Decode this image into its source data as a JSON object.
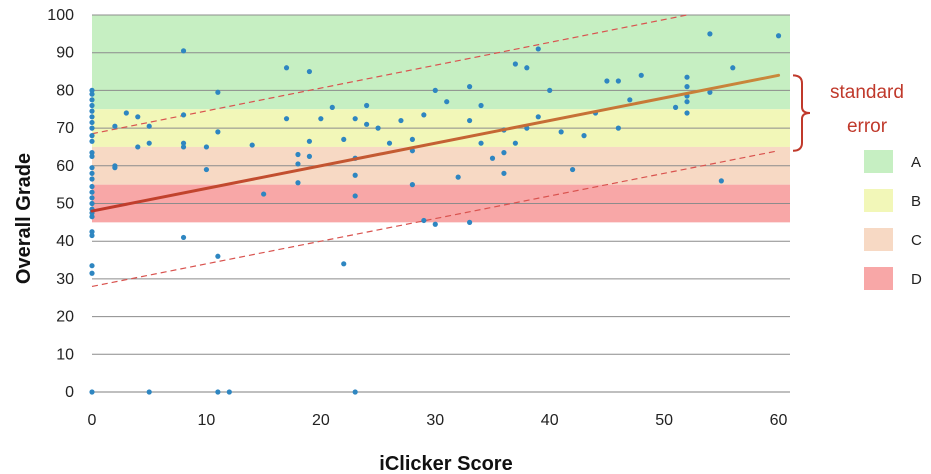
{
  "chart_data": {
    "type": "scatter",
    "xlabel": "iClicker Score",
    "ylabel": "Overall Grade",
    "xlim": [
      0,
      61
    ],
    "ylim": [
      0,
      100
    ],
    "xticks": [
      "0",
      "10",
      "20",
      "30",
      "40",
      "50",
      "60"
    ],
    "yticks": [
      "0",
      "10",
      "20",
      "30",
      "40",
      "50",
      "60",
      "70",
      "80",
      "90",
      "100"
    ],
    "grid": "horizontal",
    "grade_bands": [
      {
        "label": "A",
        "from": 75,
        "to": 100,
        "color": "#c6efc2"
      },
      {
        "label": "B",
        "from": 65,
        "to": 75,
        "color": "#f2f7b8"
      },
      {
        "label": "C",
        "from": 55,
        "to": 65,
        "color": "#f7d9c4"
      },
      {
        "label": "D",
        "from": 45,
        "to": 55,
        "color": "#f8a7a7"
      }
    ],
    "trend_line": {
      "x": [
        0,
        60
      ],
      "y": [
        48,
        84
      ],
      "color": "#c0392b"
    },
    "band_lines": [
      {
        "x": [
          0,
          52
        ],
        "y": [
          68.5,
          100
        ]
      },
      {
        "x": [
          0,
          60
        ],
        "y": [
          28,
          64
        ]
      }
    ],
    "annotation": "standard\nerror",
    "legend_position": "right",
    "points_color": "#2e86c1",
    "points": [
      [
        0,
        0
      ],
      [
        0,
        31.5
      ],
      [
        0,
        33.5
      ],
      [
        0,
        41.5
      ],
      [
        0,
        42.5
      ],
      [
        0,
        46.5
      ],
      [
        0,
        47.5
      ],
      [
        0,
        48.5
      ],
      [
        0,
        50
      ],
      [
        0,
        51.5
      ],
      [
        0,
        53
      ],
      [
        0,
        54.5
      ],
      [
        0,
        56.5
      ],
      [
        0,
        58
      ],
      [
        0,
        59.5
      ],
      [
        0,
        62.5
      ],
      [
        0,
        63.5
      ],
      [
        0,
        66.5
      ],
      [
        0,
        68
      ],
      [
        0,
        70
      ],
      [
        0,
        71.5
      ],
      [
        0,
        73
      ],
      [
        0,
        74.5
      ],
      [
        0,
        76
      ],
      [
        0,
        77.5
      ],
      [
        0,
        79
      ],
      [
        0,
        80
      ],
      [
        2,
        59.5
      ],
      [
        2,
        60
      ],
      [
        2,
        70.5
      ],
      [
        3,
        74
      ],
      [
        4,
        65
      ],
      [
        4,
        73
      ],
      [
        5,
        66
      ],
      [
        5,
        70.5
      ],
      [
        5,
        0
      ],
      [
        8,
        90.5
      ],
      [
        8,
        73.5
      ],
      [
        8,
        66
      ],
      [
        8,
        65
      ],
      [
        8,
        41
      ],
      [
        10,
        65
      ],
      [
        10,
        59
      ],
      [
        11,
        79.5
      ],
      [
        11,
        69
      ],
      [
        11,
        36
      ],
      [
        11,
        0
      ],
      [
        12,
        0
      ],
      [
        14,
        65.5
      ],
      [
        15,
        52.5
      ],
      [
        17,
        86
      ],
      [
        17,
        72.5
      ],
      [
        18,
        63
      ],
      [
        18,
        60.5
      ],
      [
        18,
        55.5
      ],
      [
        19,
        85
      ],
      [
        19,
        66.5
      ],
      [
        19,
        62.5
      ],
      [
        20,
        72.5
      ],
      [
        21,
        75.5
      ],
      [
        22,
        34
      ],
      [
        22,
        67
      ],
      [
        23,
        72.5
      ],
      [
        23,
        62
      ],
      [
        23,
        57.5
      ],
      [
        23,
        52
      ],
      [
        23,
        0
      ],
      [
        24,
        76
      ],
      [
        24,
        71
      ],
      [
        25,
        70
      ],
      [
        26,
        66
      ],
      [
        27,
        72
      ],
      [
        28,
        67
      ],
      [
        28,
        64
      ],
      [
        28,
        55
      ],
      [
        29,
        73.5
      ],
      [
        29,
        45.5
      ],
      [
        30,
        80
      ],
      [
        30,
        44.5
      ],
      [
        31,
        77
      ],
      [
        32,
        57
      ],
      [
        33,
        81
      ],
      [
        33,
        72
      ],
      [
        33,
        45
      ],
      [
        34,
        76
      ],
      [
        34,
        66
      ],
      [
        35,
        62
      ],
      [
        36,
        69.5
      ],
      [
        36,
        58
      ],
      [
        36,
        63.5
      ],
      [
        37,
        87
      ],
      [
        37,
        66
      ],
      [
        38,
        86
      ],
      [
        38,
        70
      ],
      [
        39,
        91
      ],
      [
        39,
        73
      ],
      [
        40,
        80
      ],
      [
        41,
        69
      ],
      [
        42,
        59
      ],
      [
        43,
        68
      ],
      [
        44,
        74
      ],
      [
        45,
        82.5
      ],
      [
        46,
        82.5
      ],
      [
        46,
        70
      ],
      [
        47,
        77.5
      ],
      [
        48,
        84
      ],
      [
        51,
        75.5
      ],
      [
        52,
        83.5
      ],
      [
        52,
        81
      ],
      [
        52,
        78.5
      ],
      [
        52,
        77
      ],
      [
        52,
        74
      ],
      [
        54,
        95
      ],
      [
        54,
        79.5
      ],
      [
        55,
        56
      ],
      [
        56,
        86
      ],
      [
        60,
        94.5
      ]
    ],
    "legend": [
      {
        "label": "A",
        "color": "#c6efc2"
      },
      {
        "label": "B",
        "color": "#f2f7b8"
      },
      {
        "label": "C",
        "color": "#f7d9c4"
      },
      {
        "label": "D",
        "color": "#f8a7a7"
      }
    ]
  }
}
